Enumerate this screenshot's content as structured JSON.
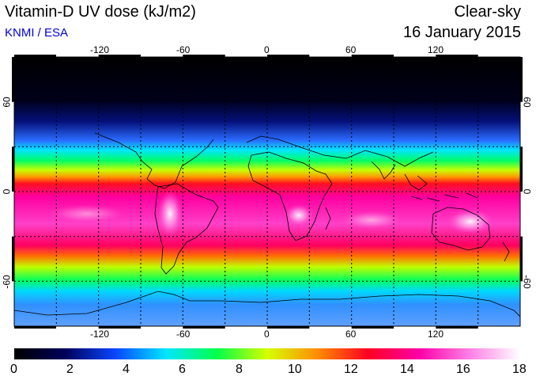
{
  "header": {
    "title": "Vitamin-D UV dose (kJ/m2)",
    "source": "KNMI / ESA",
    "sky_condition": "Clear-sky",
    "date": "16 January 2015"
  },
  "map": {
    "lon_ticks": [
      "-120",
      "-60",
      "0",
      "60",
      "120"
    ],
    "lat_ticks": [
      "60",
      "0",
      "-60"
    ],
    "grid": "dotted, 30-degree spacing",
    "projection": "equirectangular",
    "lon_range": [
      -180,
      180
    ],
    "lat_range": [
      -90,
      90
    ]
  },
  "colorbar": {
    "labels": [
      "0",
      "2",
      "4",
      "6",
      "8",
      "10",
      "12",
      "14",
      "16",
      "18"
    ],
    "min": 0,
    "max": 18,
    "colors": [
      "#000000",
      "#00005a",
      "#0a46ff",
      "#00e6ff",
      "#00ff4a",
      "#d6ff00",
      "#ff8c00",
      "#ff0022",
      "#ff00a8",
      "#ff80e6",
      "#ffffff"
    ]
  }
}
